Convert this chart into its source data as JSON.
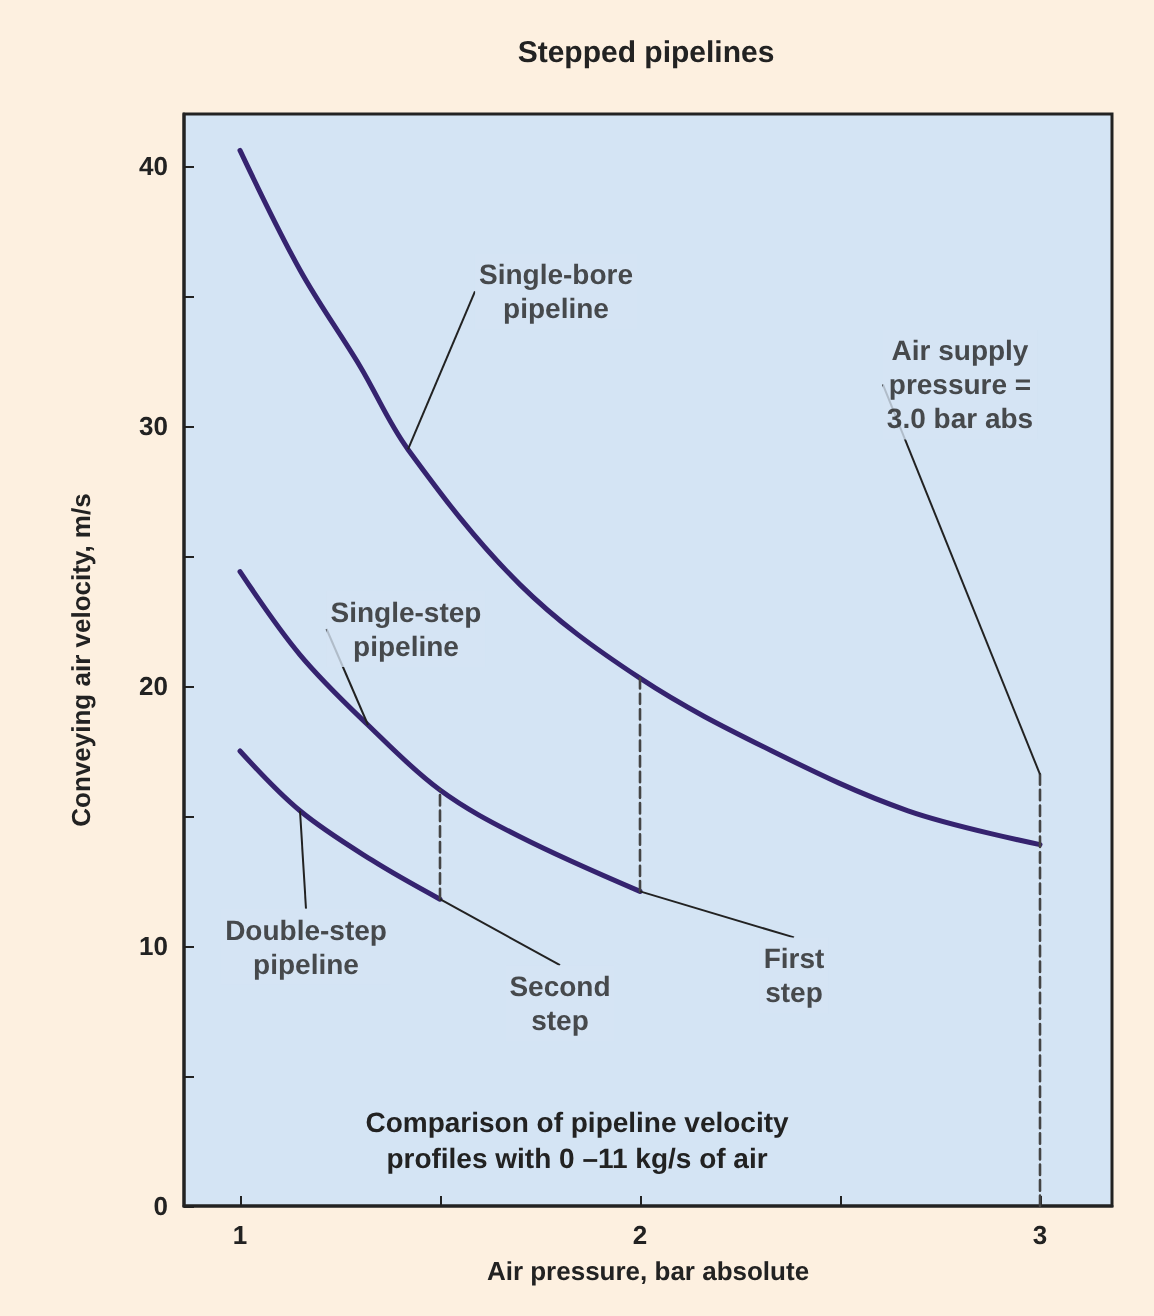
{
  "chart_data": {
    "type": "line",
    "title": "Stepped pipelines",
    "xlabel": "Air pressure, bar absolute",
    "ylabel": "Conveying air velocity, m/s",
    "xlim": [
      0.86,
      3.18
    ],
    "ylim": [
      0,
      42
    ],
    "xticks": [
      1,
      {
        "value": 1.5,
        "label": null
      },
      2,
      {
        "value": 2.5,
        "label": null
      },
      3
    ],
    "yticks": [
      0,
      {
        "value": 5,
        "label": null
      },
      10,
      {
        "value": 15,
        "label": null
      },
      20,
      {
        "value": 25,
        "label": null
      },
      30,
      {
        "value": 35,
        "label": null
      },
      40
    ],
    "grid": false,
    "marker": "none",
    "line_style": "solid",
    "series": [
      {
        "color": "#35236f",
        "x": [
          1.0,
          1.15,
          1.3,
          1.42,
          1.7,
          2.0,
          2.33,
          2.67,
          3.0
        ],
        "values": [
          40.6,
          36.0,
          32.3,
          29.1,
          23.9,
          20.3,
          17.5,
          15.2,
          13.9
        ]
      },
      {
        "color": "#35236f",
        "x": [
          1.0,
          1.15,
          1.32,
          1.5,
          1.7,
          2.0
        ],
        "values": [
          24.4,
          21.2,
          18.5,
          16.0,
          14.2,
          12.1
        ]
      },
      {
        "color": "#35236f",
        "x": [
          1.0,
          1.15,
          1.33,
          1.5
        ],
        "values": [
          17.5,
          15.2,
          13.3,
          11.8
        ]
      },
      {
        "color": "#444444",
        "line_style": "dashed",
        "x": [
          1.5,
          1.5
        ],
        "values": [
          11.8,
          16.0
        ]
      },
      {
        "color": "#444444",
        "line_style": "dashed",
        "x": [
          2.0,
          2.0
        ],
        "values": [
          12.1,
          20.3
        ]
      },
      {
        "color": "#444444",
        "line_style": "dashed",
        "x": [
          3.0,
          3.0
        ],
        "values": [
          0,
          16.6
        ]
      }
    ],
    "annotations": [
      {
        "text": "Single-bore\npipeline",
        "x": 1.42,
        "y": 29.1
      },
      {
        "text": "Single-step\npipeline",
        "x": 1.32,
        "y": 18.5
      },
      {
        "text": "Double-step\npipeline",
        "x": 1.15,
        "y": 15.2
      },
      {
        "text": "Second\nstep",
        "x": 1.5,
        "y": 11.8
      },
      {
        "text": "First\nstep",
        "x": 2.0,
        "y": 12.1
      },
      {
        "text": "Air supply\npressure =\n3.0 bar abs",
        "x": 3.0,
        "y": 16.6
      },
      "Comparison of pipeline velocity\nprofiles with 0 –11 kg/s of air"
    ]
  }
}
